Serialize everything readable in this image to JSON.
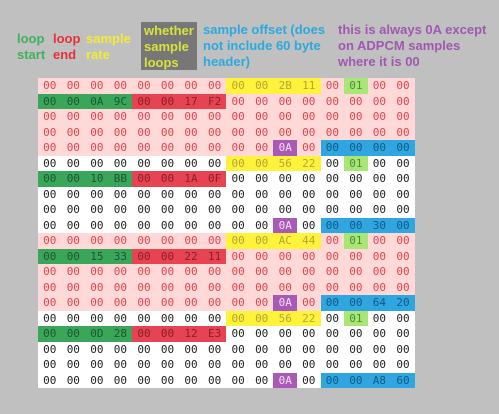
{
  "legend": {
    "loop_start": "loop start",
    "loop_end": "loop end",
    "sample_rate": "sample rate",
    "whether_loops": "whether sample loops",
    "sample_offset": "sample offset (does not include 60 byte header)",
    "always_0a": "this is always 0A except on ADPCM samples where it is 00"
  },
  "colors": {
    "loop_start": "#3aa65a",
    "loop_end": "#e64452",
    "sample_rate": "#fff23a",
    "whether_loops": "#a8e676",
    "sample_offset": "#2fa6e0",
    "always_0a": "#a95ab6",
    "record_band": "#ffd8d8",
    "background": "#c0c0c0"
  },
  "hex_rows": [
    [
      [
        "00",
        "pink"
      ],
      [
        "00",
        "pink"
      ],
      [
        "00",
        "pink"
      ],
      [
        "00",
        "pink"
      ],
      [
        "00",
        "pink"
      ],
      [
        "00",
        "pink"
      ],
      [
        "00",
        "pink"
      ],
      [
        "00",
        "pink"
      ],
      [
        "00",
        "yellow"
      ],
      [
        "00",
        "yellow"
      ],
      [
        "2B",
        "yellow"
      ],
      [
        "11",
        "yellow"
      ],
      [
        "00",
        "pink"
      ],
      [
        "01",
        "lgreen"
      ],
      [
        "00",
        "pink"
      ],
      [
        "00",
        "pink"
      ]
    ],
    [
      [
        "00",
        "green"
      ],
      [
        "00",
        "green"
      ],
      [
        "0A",
        "green"
      ],
      [
        "9C",
        "green"
      ],
      [
        "00",
        "red"
      ],
      [
        "00",
        "red"
      ],
      [
        "17",
        "red"
      ],
      [
        "F2",
        "red"
      ],
      [
        "00",
        "pink"
      ],
      [
        "00",
        "pink"
      ],
      [
        "00",
        "pink"
      ],
      [
        "00",
        "pink"
      ],
      [
        "00",
        "pink"
      ],
      [
        "00",
        "pink"
      ],
      [
        "00",
        "pink"
      ],
      [
        "00",
        "pink"
      ]
    ],
    [
      [
        "00",
        "pink"
      ],
      [
        "00",
        "pink"
      ],
      [
        "00",
        "pink"
      ],
      [
        "00",
        "pink"
      ],
      [
        "00",
        "pink"
      ],
      [
        "00",
        "pink"
      ],
      [
        "00",
        "pink"
      ],
      [
        "00",
        "pink"
      ],
      [
        "00",
        "pink"
      ],
      [
        "00",
        "pink"
      ],
      [
        "00",
        "pink"
      ],
      [
        "00",
        "pink"
      ],
      [
        "00",
        "pink"
      ],
      [
        "00",
        "pink"
      ],
      [
        "00",
        "pink"
      ],
      [
        "00",
        "pink"
      ]
    ],
    [
      [
        "00",
        "pink"
      ],
      [
        "00",
        "pink"
      ],
      [
        "00",
        "pink"
      ],
      [
        "00",
        "pink"
      ],
      [
        "00",
        "pink"
      ],
      [
        "00",
        "pink"
      ],
      [
        "00",
        "pink"
      ],
      [
        "00",
        "pink"
      ],
      [
        "00",
        "pink"
      ],
      [
        "00",
        "pink"
      ],
      [
        "00",
        "pink"
      ],
      [
        "00",
        "pink"
      ],
      [
        "00",
        "pink"
      ],
      [
        "00",
        "pink"
      ],
      [
        "00",
        "pink"
      ],
      [
        "00",
        "pink"
      ]
    ],
    [
      [
        "00",
        "pink"
      ],
      [
        "00",
        "pink"
      ],
      [
        "00",
        "pink"
      ],
      [
        "00",
        "pink"
      ],
      [
        "00",
        "pink"
      ],
      [
        "00",
        "pink"
      ],
      [
        "00",
        "pink"
      ],
      [
        "00",
        "pink"
      ],
      [
        "00",
        "pink"
      ],
      [
        "00",
        "pink"
      ],
      [
        "0A",
        "purple"
      ],
      [
        "00",
        "pink"
      ],
      [
        "00",
        "blue"
      ],
      [
        "00",
        "blue"
      ],
      [
        "00",
        "blue"
      ],
      [
        "00",
        "blue"
      ]
    ],
    [
      [
        "00",
        "white"
      ],
      [
        "00",
        "white"
      ],
      [
        "00",
        "white"
      ],
      [
        "00",
        "white"
      ],
      [
        "00",
        "white"
      ],
      [
        "00",
        "white"
      ],
      [
        "00",
        "white"
      ],
      [
        "00",
        "white"
      ],
      [
        "00",
        "yellow"
      ],
      [
        "00",
        "yellow"
      ],
      [
        "56",
        "yellow"
      ],
      [
        "22",
        "yellow"
      ],
      [
        "00",
        "white"
      ],
      [
        "01",
        "lgreen"
      ],
      [
        "00",
        "white"
      ],
      [
        "00",
        "white"
      ]
    ],
    [
      [
        "00",
        "green"
      ],
      [
        "00",
        "green"
      ],
      [
        "10",
        "green"
      ],
      [
        "BB",
        "green"
      ],
      [
        "00",
        "red"
      ],
      [
        "00",
        "red"
      ],
      [
        "1A",
        "red"
      ],
      [
        "0F",
        "red"
      ],
      [
        "00",
        "white"
      ],
      [
        "00",
        "white"
      ],
      [
        "00",
        "white"
      ],
      [
        "00",
        "white"
      ],
      [
        "00",
        "white"
      ],
      [
        "00",
        "white"
      ],
      [
        "00",
        "white"
      ],
      [
        "00",
        "white"
      ]
    ],
    [
      [
        "00",
        "white"
      ],
      [
        "00",
        "white"
      ],
      [
        "00",
        "white"
      ],
      [
        "00",
        "white"
      ],
      [
        "00",
        "white"
      ],
      [
        "00",
        "white"
      ],
      [
        "00",
        "white"
      ],
      [
        "00",
        "white"
      ],
      [
        "00",
        "white"
      ],
      [
        "00",
        "white"
      ],
      [
        "00",
        "white"
      ],
      [
        "00",
        "white"
      ],
      [
        "00",
        "white"
      ],
      [
        "00",
        "white"
      ],
      [
        "00",
        "white"
      ],
      [
        "00",
        "white"
      ]
    ],
    [
      [
        "00",
        "white"
      ],
      [
        "00",
        "white"
      ],
      [
        "00",
        "white"
      ],
      [
        "00",
        "white"
      ],
      [
        "00",
        "white"
      ],
      [
        "00",
        "white"
      ],
      [
        "00",
        "white"
      ],
      [
        "00",
        "white"
      ],
      [
        "00",
        "white"
      ],
      [
        "00",
        "white"
      ],
      [
        "00",
        "white"
      ],
      [
        "00",
        "white"
      ],
      [
        "00",
        "white"
      ],
      [
        "00",
        "white"
      ],
      [
        "00",
        "white"
      ],
      [
        "00",
        "white"
      ]
    ],
    [
      [
        "00",
        "white"
      ],
      [
        "00",
        "white"
      ],
      [
        "00",
        "white"
      ],
      [
        "00",
        "white"
      ],
      [
        "00",
        "white"
      ],
      [
        "00",
        "white"
      ],
      [
        "00",
        "white"
      ],
      [
        "00",
        "white"
      ],
      [
        "00",
        "white"
      ],
      [
        "00",
        "white"
      ],
      [
        "0A",
        "purple"
      ],
      [
        "00",
        "white"
      ],
      [
        "00",
        "blue"
      ],
      [
        "00",
        "blue"
      ],
      [
        "30",
        "blue"
      ],
      [
        "00",
        "blue"
      ]
    ],
    [
      [
        "00",
        "pink"
      ],
      [
        "00",
        "pink"
      ],
      [
        "00",
        "pink"
      ],
      [
        "00",
        "pink"
      ],
      [
        "00",
        "pink"
      ],
      [
        "00",
        "pink"
      ],
      [
        "00",
        "pink"
      ],
      [
        "00",
        "pink"
      ],
      [
        "00",
        "yellow"
      ],
      [
        "00",
        "yellow"
      ],
      [
        "AC",
        "yellow"
      ],
      [
        "44",
        "yellow"
      ],
      [
        "00",
        "pink"
      ],
      [
        "01",
        "lgreen"
      ],
      [
        "00",
        "pink"
      ],
      [
        "00",
        "pink"
      ]
    ],
    [
      [
        "00",
        "green"
      ],
      [
        "00",
        "green"
      ],
      [
        "15",
        "green"
      ],
      [
        "33",
        "green"
      ],
      [
        "00",
        "red"
      ],
      [
        "00",
        "red"
      ],
      [
        "22",
        "red"
      ],
      [
        "11",
        "red"
      ],
      [
        "00",
        "pink"
      ],
      [
        "00",
        "pink"
      ],
      [
        "00",
        "pink"
      ],
      [
        "00",
        "pink"
      ],
      [
        "00",
        "pink"
      ],
      [
        "00",
        "pink"
      ],
      [
        "00",
        "pink"
      ],
      [
        "00",
        "pink"
      ]
    ],
    [
      [
        "00",
        "pink"
      ],
      [
        "00",
        "pink"
      ],
      [
        "00",
        "pink"
      ],
      [
        "00",
        "pink"
      ],
      [
        "00",
        "pink"
      ],
      [
        "00",
        "pink"
      ],
      [
        "00",
        "pink"
      ],
      [
        "00",
        "pink"
      ],
      [
        "00",
        "pink"
      ],
      [
        "00",
        "pink"
      ],
      [
        "00",
        "pink"
      ],
      [
        "00",
        "pink"
      ],
      [
        "00",
        "pink"
      ],
      [
        "00",
        "pink"
      ],
      [
        "00",
        "pink"
      ],
      [
        "00",
        "pink"
      ]
    ],
    [
      [
        "00",
        "pink"
      ],
      [
        "00",
        "pink"
      ],
      [
        "00",
        "pink"
      ],
      [
        "00",
        "pink"
      ],
      [
        "00",
        "pink"
      ],
      [
        "00",
        "pink"
      ],
      [
        "00",
        "pink"
      ],
      [
        "00",
        "pink"
      ],
      [
        "00",
        "pink"
      ],
      [
        "00",
        "pink"
      ],
      [
        "00",
        "pink"
      ],
      [
        "00",
        "pink"
      ],
      [
        "00",
        "pink"
      ],
      [
        "00",
        "pink"
      ],
      [
        "00",
        "pink"
      ],
      [
        "00",
        "pink"
      ]
    ],
    [
      [
        "00",
        "pink"
      ],
      [
        "00",
        "pink"
      ],
      [
        "00",
        "pink"
      ],
      [
        "00",
        "pink"
      ],
      [
        "00",
        "pink"
      ],
      [
        "00",
        "pink"
      ],
      [
        "00",
        "pink"
      ],
      [
        "00",
        "pink"
      ],
      [
        "00",
        "pink"
      ],
      [
        "00",
        "pink"
      ],
      [
        "0A",
        "purple"
      ],
      [
        "00",
        "pink"
      ],
      [
        "00",
        "blue"
      ],
      [
        "00",
        "blue"
      ],
      [
        "64",
        "blue"
      ],
      [
        "20",
        "blue"
      ]
    ],
    [
      [
        "00",
        "white"
      ],
      [
        "00",
        "white"
      ],
      [
        "00",
        "white"
      ],
      [
        "00",
        "white"
      ],
      [
        "00",
        "white"
      ],
      [
        "00",
        "white"
      ],
      [
        "00",
        "white"
      ],
      [
        "00",
        "white"
      ],
      [
        "00",
        "yellow"
      ],
      [
        "00",
        "yellow"
      ],
      [
        "56",
        "yellow"
      ],
      [
        "22",
        "yellow"
      ],
      [
        "00",
        "white"
      ],
      [
        "01",
        "lgreen"
      ],
      [
        "00",
        "white"
      ],
      [
        "00",
        "white"
      ]
    ],
    [
      [
        "00",
        "green"
      ],
      [
        "00",
        "green"
      ],
      [
        "0D",
        "green"
      ],
      [
        "28",
        "green"
      ],
      [
        "00",
        "red"
      ],
      [
        "00",
        "red"
      ],
      [
        "12",
        "red"
      ],
      [
        "E3",
        "red"
      ],
      [
        "00",
        "white"
      ],
      [
        "00",
        "white"
      ],
      [
        "00",
        "white"
      ],
      [
        "00",
        "white"
      ],
      [
        "00",
        "white"
      ],
      [
        "00",
        "white"
      ],
      [
        "00",
        "white"
      ],
      [
        "00",
        "white"
      ]
    ],
    [
      [
        "00",
        "white"
      ],
      [
        "00",
        "white"
      ],
      [
        "00",
        "white"
      ],
      [
        "00",
        "white"
      ],
      [
        "00",
        "white"
      ],
      [
        "00",
        "white"
      ],
      [
        "00",
        "white"
      ],
      [
        "00",
        "white"
      ],
      [
        "00",
        "white"
      ],
      [
        "00",
        "white"
      ],
      [
        "00",
        "white"
      ],
      [
        "00",
        "white"
      ],
      [
        "00",
        "white"
      ],
      [
        "00",
        "white"
      ],
      [
        "00",
        "white"
      ],
      [
        "00",
        "white"
      ]
    ],
    [
      [
        "00",
        "white"
      ],
      [
        "00",
        "white"
      ],
      [
        "00",
        "white"
      ],
      [
        "00",
        "white"
      ],
      [
        "00",
        "white"
      ],
      [
        "00",
        "white"
      ],
      [
        "00",
        "white"
      ],
      [
        "00",
        "white"
      ],
      [
        "00",
        "white"
      ],
      [
        "00",
        "white"
      ],
      [
        "00",
        "white"
      ],
      [
        "00",
        "white"
      ],
      [
        "00",
        "white"
      ],
      [
        "00",
        "white"
      ],
      [
        "00",
        "white"
      ],
      [
        "00",
        "white"
      ]
    ],
    [
      [
        "00",
        "white"
      ],
      [
        "00",
        "white"
      ],
      [
        "00",
        "white"
      ],
      [
        "00",
        "white"
      ],
      [
        "00",
        "white"
      ],
      [
        "00",
        "white"
      ],
      [
        "00",
        "white"
      ],
      [
        "00",
        "white"
      ],
      [
        "00",
        "white"
      ],
      [
        "00",
        "white"
      ],
      [
        "0A",
        "purple"
      ],
      [
        "00",
        "white"
      ],
      [
        "00",
        "blue"
      ],
      [
        "00",
        "blue"
      ],
      [
        "A8",
        "blue"
      ],
      [
        "60",
        "blue"
      ]
    ]
  ]
}
